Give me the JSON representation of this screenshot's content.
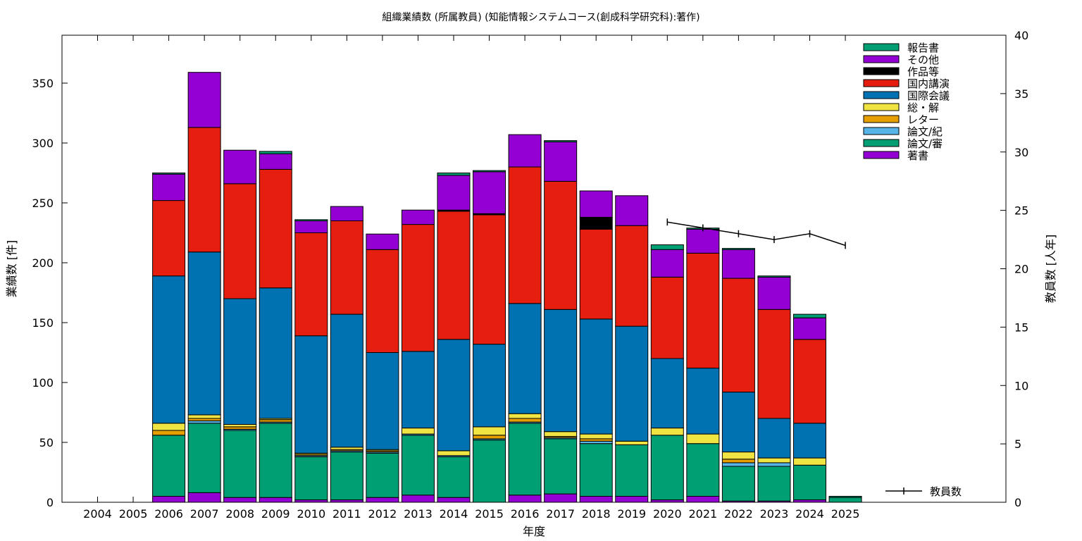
{
  "chart_data": {
    "type": "bar",
    "stacked": true,
    "title": "組織業績数 (所属教員) (知能情報システムコース(創成科学研究科):著作)",
    "xlabel": "年度",
    "ylabel": "業績数 [件]",
    "y2label": "教員数 [人年]",
    "ylim": [
      0,
      390
    ],
    "y2lim": [
      0,
      40
    ],
    "yticks": [
      "0",
      "50",
      "100",
      "150",
      "200",
      "250",
      "300",
      "350"
    ],
    "y2ticks": [
      "0",
      "5",
      "10",
      "15",
      "20",
      "25",
      "30",
      "35",
      "40"
    ],
    "grid": false,
    "legend_position": "top-right",
    "categories": [
      "2004",
      "2005",
      "2006",
      "2007",
      "2008",
      "2009",
      "2010",
      "2011",
      "2012",
      "2013",
      "2014",
      "2015",
      "2016",
      "2017",
      "2018",
      "2019",
      "2020",
      "2021",
      "2022",
      "2023",
      "2024",
      "2025"
    ],
    "series": [
      {
        "name": "著書",
        "color": "#9400d3",
        "values": [
          0,
          0,
          5,
          8,
          4,
          4,
          2,
          2,
          4,
          6,
          4,
          0,
          6,
          7,
          5,
          5,
          2,
          5,
          1,
          1,
          2,
          0
        ]
      },
      {
        "name": "論文/審",
        "color": "#009e73",
        "values": [
          0,
          0,
          51,
          58,
          56,
          62,
          36,
          40,
          37,
          50,
          34,
          52,
          60,
          46,
          44,
          43,
          54,
          44,
          29,
          29,
          29,
          4
        ]
      },
      {
        "name": "論文/紀",
        "color": "#56b4e9",
        "values": [
          0,
          0,
          0,
          2,
          1,
          1,
          1,
          1,
          1,
          1,
          1,
          1,
          1,
          1,
          2,
          0,
          0,
          0,
          3,
          3,
          0,
          0
        ]
      },
      {
        "name": "レター",
        "color": "#e69f00",
        "values": [
          0,
          0,
          4,
          2,
          2,
          2,
          1,
          1,
          1,
          0,
          0,
          3,
          3,
          1,
          2,
          0,
          0,
          0,
          3,
          0,
          0,
          0
        ]
      },
      {
        "name": "総・解",
        "color": "#f0e442",
        "values": [
          0,
          0,
          6,
          3,
          2,
          1,
          1,
          2,
          1,
          5,
          4,
          7,
          4,
          4,
          4,
          3,
          6,
          8,
          6,
          4,
          6,
          0
        ]
      },
      {
        "name": "国際会議",
        "color": "#0072b2",
        "values": [
          0,
          0,
          123,
          136,
          105,
          109,
          98,
          111,
          81,
          64,
          93,
          69,
          92,
          102,
          96,
          96,
          58,
          55,
          50,
          33,
          29,
          0
        ]
      },
      {
        "name": "国内講演",
        "color": "#e51e10",
        "values": [
          0,
          0,
          63,
          104,
          96,
          99,
          86,
          78,
          86,
          106,
          107,
          108,
          114,
          107,
          75,
          84,
          68,
          96,
          95,
          91,
          70,
          0
        ]
      },
      {
        "name": "作品等",
        "color": "#000000",
        "values": [
          0,
          0,
          0,
          0,
          0,
          0,
          0,
          0,
          0,
          0,
          1,
          1,
          0,
          0,
          10,
          0,
          0,
          0,
          0,
          0,
          0,
          0
        ]
      },
      {
        "name": "その他",
        "color": "#9400d3",
        "values": [
          0,
          0,
          22,
          46,
          28,
          13,
          10,
          12,
          13,
          12,
          29,
          35,
          27,
          33,
          22,
          25,
          23,
          20,
          24,
          27,
          18,
          0
        ]
      },
      {
        "name": "報告書",
        "color": "#009e73",
        "values": [
          0,
          0,
          1,
          0,
          0,
          2,
          1,
          0,
          0,
          0,
          2,
          1,
          0,
          1,
          0,
          0,
          4,
          1,
          1,
          1,
          3,
          1
        ]
      }
    ],
    "line_series": {
      "name": "教員数",
      "axis": "right",
      "color": "#000000",
      "x": [
        "2020",
        "2021",
        "2022",
        "2023",
        "2024",
        "2025"
      ],
      "values": [
        24,
        23.5,
        23,
        22.5,
        23,
        22
      ]
    }
  }
}
